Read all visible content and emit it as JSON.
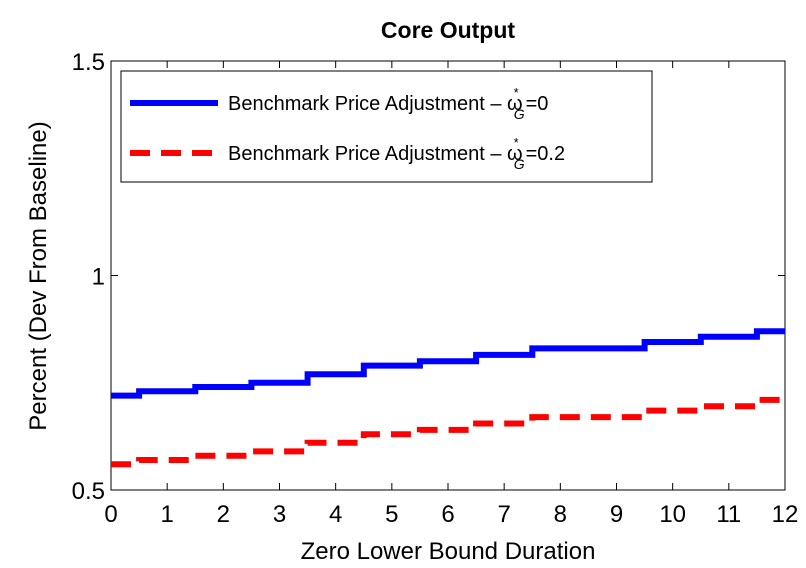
{
  "chart_data": {
    "type": "line",
    "title": "Core Output",
    "xlabel": "Zero Lower Bound Duration",
    "ylabel": "Percent (Dev From Baseline)",
    "xlim": [
      0,
      12
    ],
    "ylim": [
      0.5,
      1.5
    ],
    "xticks": [
      0,
      1,
      2,
      3,
      4,
      5,
      6,
      7,
      8,
      9,
      10,
      11,
      12
    ],
    "yticks": [
      0.5,
      1,
      1.5
    ],
    "ytick_labels": [
      "0.5",
      "1",
      "1.5"
    ],
    "grid": false,
    "legend_position": "top-left",
    "series": [
      {
        "name": "Benchmark Price Adjustment – ω",
        "name_sup": "*",
        "name_sub": "G",
        "name_suffix": "=0",
        "color": "#0000ff",
        "style": "solid",
        "x": [
          0,
          0.5,
          1.5,
          2.5,
          3.5,
          4.5,
          5.5,
          6.5,
          7.5,
          8.5,
          9.5,
          10.5,
          11.5,
          12
        ],
        "y": [
          0.72,
          0.73,
          0.74,
          0.75,
          0.77,
          0.79,
          0.8,
          0.815,
          0.83,
          0.83,
          0.845,
          0.857,
          0.87,
          0.87
        ]
      },
      {
        "name": "Benchmark Price Adjustment – ω",
        "name_sup": "*",
        "name_sub": "G",
        "name_suffix": "=0.2",
        "color": "#ff0000",
        "style": "dashed",
        "x": [
          0,
          0.5,
          1.5,
          2.5,
          3.5,
          4.5,
          5.5,
          6.5,
          7.5,
          8.5,
          9.5,
          10.5,
          11.5,
          12
        ],
        "y": [
          0.56,
          0.57,
          0.58,
          0.59,
          0.61,
          0.63,
          0.64,
          0.655,
          0.67,
          0.67,
          0.685,
          0.695,
          0.71,
          0.71
        ]
      }
    ]
  }
}
